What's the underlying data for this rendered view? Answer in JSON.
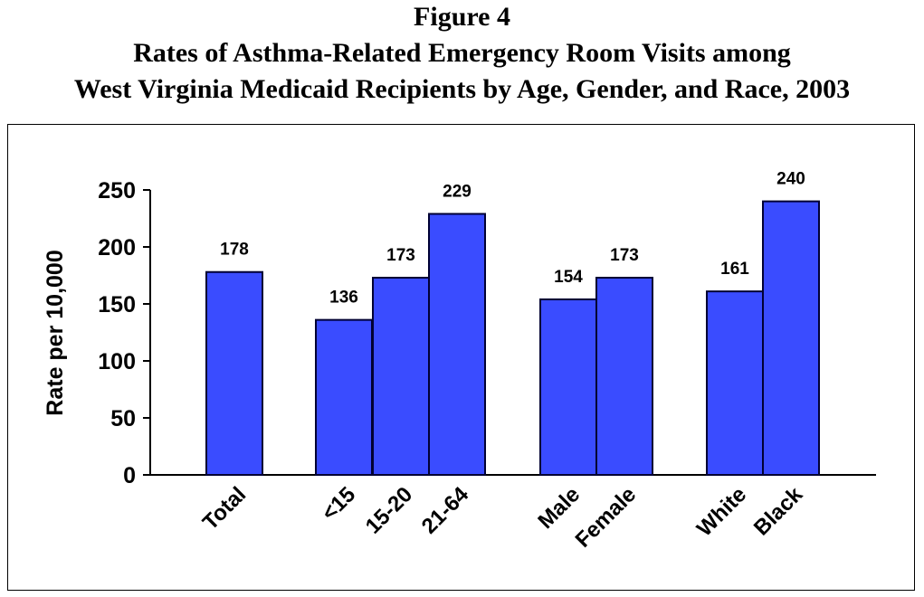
{
  "figure": {
    "number_label": "Figure 4",
    "title_line1": "Rates of Asthma-Related Emergency Room Visits among",
    "title_line2": "West Virginia Medicaid Recipients by Age, Gender, and Race, 2003"
  },
  "chart_data": {
    "type": "bar",
    "title": "Rates of Asthma-Related Emergency Room Visits among West Virginia Medicaid Recipients by Age, Gender, and Race, 2003",
    "ylabel": "Rate per 10,000",
    "xlabel": "",
    "ylim": [
      0,
      250
    ],
    "yticks": [
      0,
      50,
      100,
      150,
      200,
      250
    ],
    "grid": false,
    "legend": "none",
    "bar_color": "#3a4cff",
    "bar_edge_color": "#000033",
    "groups": [
      [
        "Total"
      ],
      [
        "<15",
        "15-20",
        "21-64"
      ],
      [
        "Male",
        "Female"
      ],
      [
        "White",
        "Black"
      ]
    ],
    "categories": [
      "Total",
      "<15",
      "15-20",
      "21-64",
      "Male",
      "Female",
      "White",
      "Black"
    ],
    "values": [
      178,
      136,
      173,
      229,
      154,
      173,
      161,
      240
    ]
  }
}
